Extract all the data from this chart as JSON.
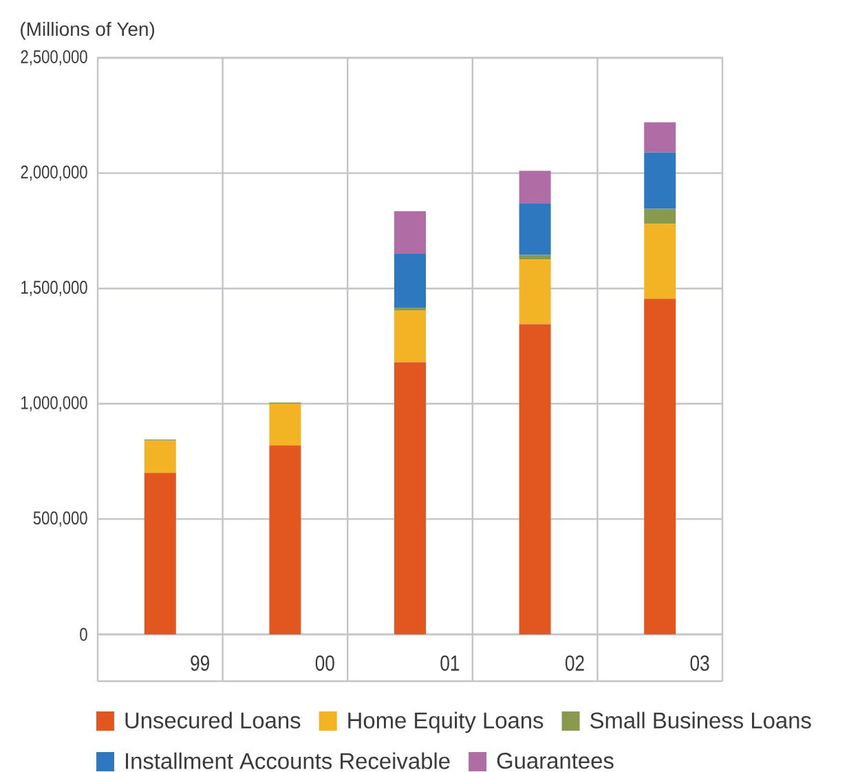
{
  "chart_data": {
    "type": "bar",
    "ylabel": "(Millions of Yen)",
    "categories": [
      "99",
      "00",
      "01",
      "02",
      "03"
    ],
    "stacked": true,
    "series": [
      {
        "name": "Unsecured Loans",
        "color": "#e2561f",
        "values": [
          700000,
          820000,
          1180000,
          1345000,
          1455000
        ]
      },
      {
        "name": "Home Equity Loans",
        "color": "#f2b324",
        "values": [
          140000,
          180000,
          225000,
          280000,
          325000
        ]
      },
      {
        "name": "Small Business Loans",
        "color": "#889a4e",
        "values": [
          5000,
          5000,
          10000,
          20000,
          65000
        ]
      },
      {
        "name": "Installment Accounts Receivable",
        "color": "#2e78c0",
        "values": [
          null,
          null,
          235000,
          225000,
          245000
        ]
      },
      {
        "name": "Guarantees",
        "color": "#b06ca5",
        "values": [
          null,
          null,
          185000,
          140000,
          130000
        ]
      }
    ],
    "ylim": [
      0,
      2500000
    ],
    "yticks": [
      0,
      {
        "value": 500000,
        "label": "500,000"
      },
      {
        "value": 1000000,
        "label": "1,000,000"
      },
      {
        "value": 1500000,
        "label": "1,500,000"
      },
      {
        "value": 2000000,
        "label": "2,000,000"
      },
      {
        "value": 2500000,
        "label": "2,500,000"
      }
    ],
    "grid": true,
    "legend": "bottom"
  }
}
